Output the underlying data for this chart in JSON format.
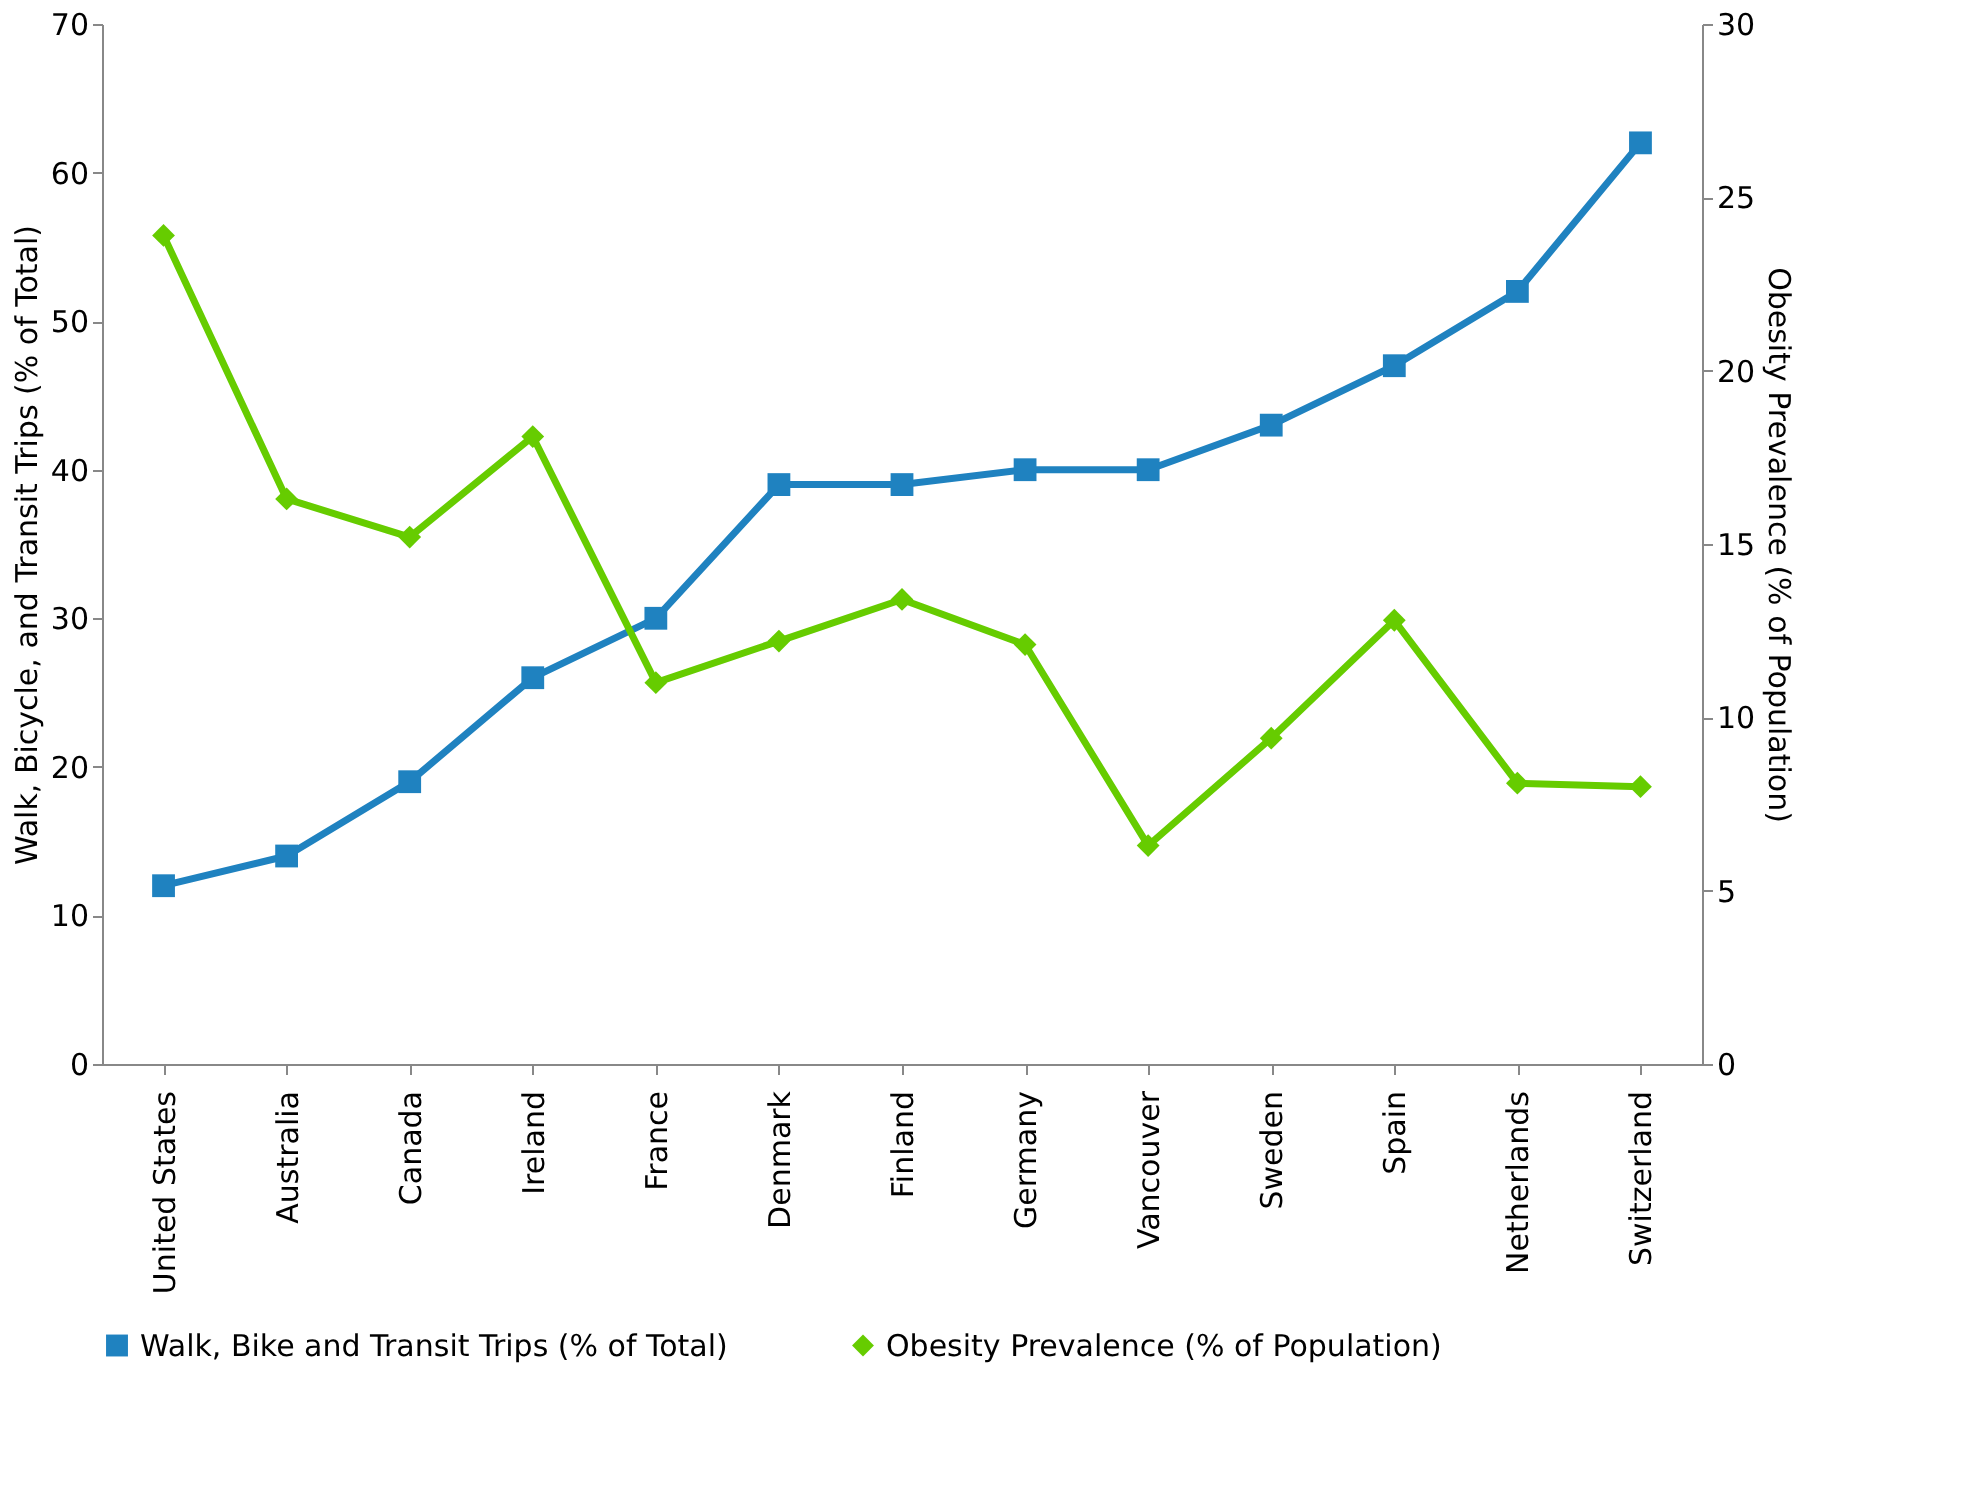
{
  "chart_data": {
    "type": "line",
    "categories": [
      "United States",
      "Australia",
      "Canada",
      "Ireland",
      "France",
      "Denmark",
      "Finland",
      "Germany",
      "Vancouver",
      "Sweden",
      "Spain",
      "Netherlands",
      "Switzerland"
    ],
    "series": [
      {
        "name": "Walk, Bike and Transit Trips (% of Total)",
        "color": "#1f82c0",
        "marker": "square",
        "values": [
          12,
          14,
          19,
          26,
          30,
          39,
          39,
          40,
          40,
          43,
          47,
          52,
          62
        ]
      },
      {
        "name": "Obesity Prevalence  (% of Population)",
        "color": "#66cc00",
        "marker": "diamond",
        "axis": "y2",
        "values": [
          23.9,
          16.3,
          15.2,
          18.1,
          11.0,
          12.2,
          13.4,
          12.1,
          6.3,
          9.4,
          12.8,
          8.1,
          8.0
        ]
      }
    ],
    "ylabel": "Walk, Bicycle, and Transit Trips (% of Total)",
    "y2label": "Obesity Prevalence  (% of Population)",
    "ylim": [
      0,
      70
    ],
    "yticks": [
      0,
      10,
      20,
      30,
      40,
      50,
      60,
      70
    ],
    "y2lim": [
      0,
      30
    ],
    "y2ticks": [
      0,
      5,
      10,
      15,
      20,
      25,
      30
    ],
    "grid": false,
    "legend": "bottom",
    "line_style": "solid"
  }
}
